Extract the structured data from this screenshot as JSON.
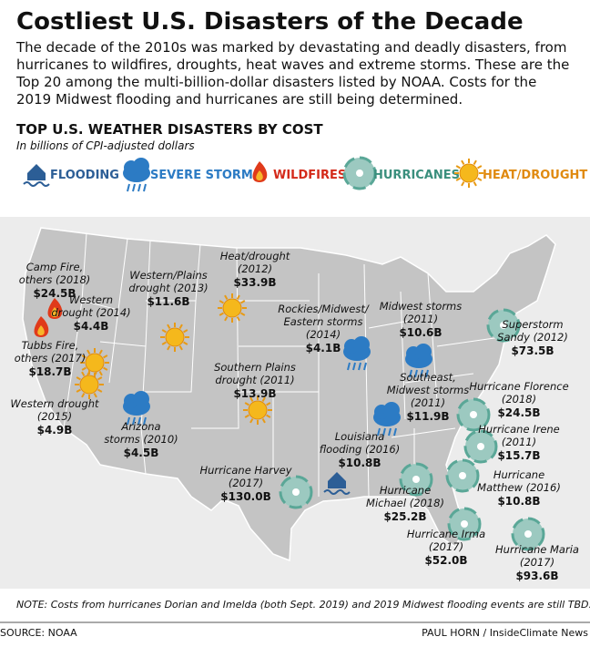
{
  "header": {
    "title": "Costliest U.S. Disasters of the Decade",
    "intro": [
      "The decade of the 2010s was marked by devastating and deadly disasters, from",
      "hurricanes to wildfires, droughts, heat waves and extreme storms. These are the",
      "Top 20 among the multi-billion-dollar disasters listed by NOAA. Costs for the",
      "2019 Midwest flooding and hurricanes are still being determined."
    ]
  },
  "chart": {
    "title": "TOP U.S. WEATHER DISASTERS BY COST",
    "units": "In billions of CPI-adjusted dollars"
  },
  "legend": [
    "FLOODING",
    "SEVERE STORMS",
    "WILDFIRES",
    "HURRICANES",
    "HEAT/DROUGHT"
  ],
  "disasters": [
    {
      "name": [
        "Camp Fire,",
        "others (2018)"
      ],
      "cost": "$24.5B"
    },
    {
      "name": [
        "Western",
        "drought (2014)"
      ],
      "cost": "$4.4B"
    },
    {
      "name": [
        "Tubbs Fire,",
        "others (2017)"
      ],
      "cost": "$18.7B"
    },
    {
      "name": [
        "Western drought",
        "(2015)"
      ],
      "cost": "$4.9B"
    },
    {
      "name": [
        "Western/Plains",
        "drought (2013)"
      ],
      "cost": "$11.6B"
    },
    {
      "name": [
        "Heat/drought",
        "(2012)"
      ],
      "cost": "$33.9B"
    },
    {
      "name": [
        "Arizona",
        "storms (2010)"
      ],
      "cost": "$4.5B"
    },
    {
      "name": [
        "Southern Plains",
        "drought (2011)"
      ],
      "cost": "$13.9B"
    },
    {
      "name": [
        "Rockies/Midwest/",
        "Eastern storms",
        "(2014)"
      ],
      "cost": "$4.1B"
    },
    {
      "name": [
        "Midwest storms",
        "(2011)"
      ],
      "cost": "$10.6B"
    },
    {
      "name": [
        "Superstorm",
        "Sandy (2012)"
      ],
      "cost": "$73.5B"
    },
    {
      "name": [
        "Southeast,",
        "Midwest storms",
        "(2011)"
      ],
      "cost": "$11.9B"
    },
    {
      "name": [
        "Hurricane Florence",
        "(2018)"
      ],
      "cost": "$24.5B"
    },
    {
      "name": [
        "Hurricane Irene",
        "(2011)"
      ],
      "cost": "$15.7B"
    },
    {
      "name": [
        "Louisiana",
        "flooding (2016)"
      ],
      "cost": "$10.8B"
    },
    {
      "name": [
        "Hurricane Harvey",
        "(2017)"
      ],
      "cost": "$130.0B"
    },
    {
      "name": [
        "Hurricane",
        "Matthew (2016)"
      ],
      "cost": "$10.8B"
    },
    {
      "name": [
        "Hurricane",
        "Michael (2018)"
      ],
      "cost": "$25.2B"
    },
    {
      "name": [
        "Hurricane Irma",
        "(2017)"
      ],
      "cost": "$52.0B"
    },
    {
      "name": [
        "Hurricane Maria",
        "(2017)"
      ],
      "cost": "$93.6B"
    }
  ],
  "note": "NOTE: Costs from hurricanes Dorian and Imelda (both Sept. 2019) and 2019 Midwest flooding events are still TBD.",
  "footer": {
    "source": "SOURCE: NOAA",
    "credit": "PAUL HORN / InsideClimate News"
  }
}
